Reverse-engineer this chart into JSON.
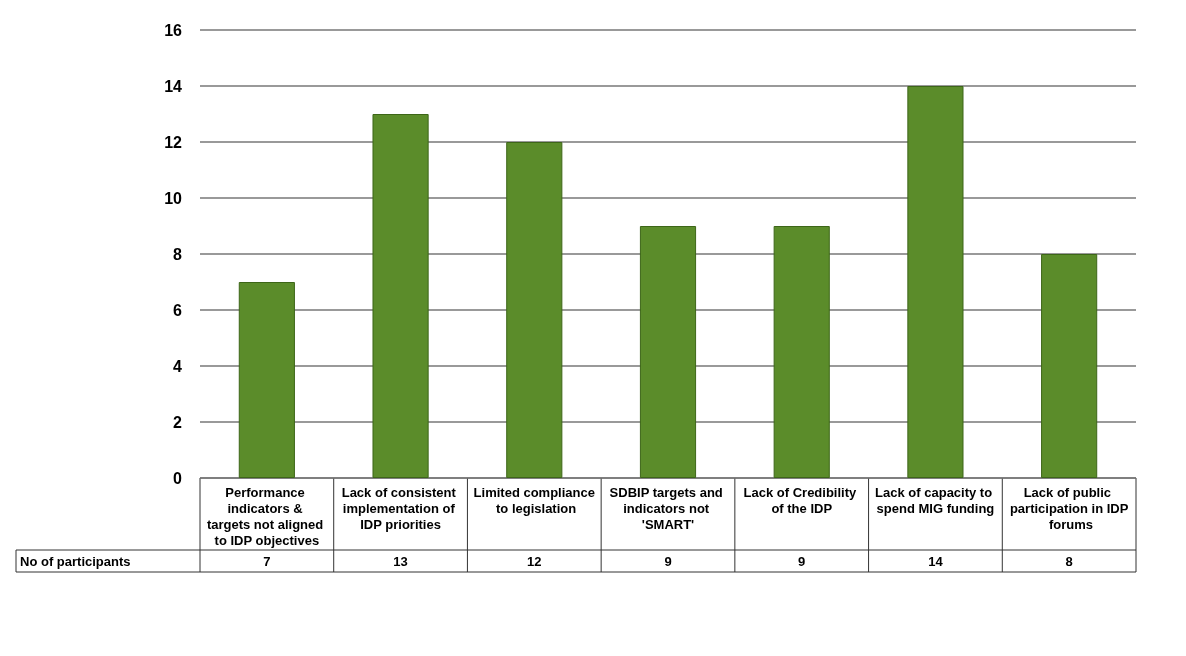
{
  "chart_data": {
    "type": "bar",
    "categories": [
      "Performance indicators & targets not aligned to IDP objectives",
      "Lack of consistent implementation of IDP priorities",
      "Limited compliance to legislation",
      "SDBIP targets and indicators not 'SMART'",
      "Lack of Credibility of the IDP",
      "Lack of capacity to spend MIG funding",
      "Lack of public participation in IDP forums"
    ],
    "series": [
      {
        "name": "No of participants",
        "color": "#5b8c2a",
        "values": [
          7,
          13,
          12,
          9,
          9,
          14,
          8
        ]
      }
    ],
    "ylim": [
      0,
      16
    ],
    "yticks": [
      0,
      2,
      4,
      6,
      8,
      10,
      12,
      14,
      16
    ],
    "grid": "y",
    "data_labels": true
  }
}
